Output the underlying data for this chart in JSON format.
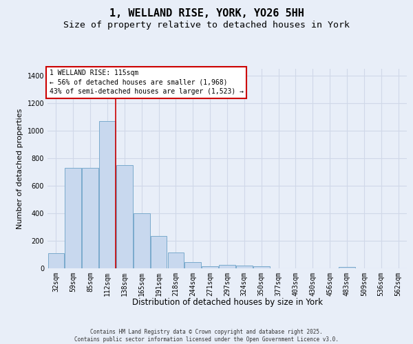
{
  "title1": "1, WELLAND RISE, YORK, YO26 5HH",
  "title2": "Size of property relative to detached houses in York",
  "xlabel": "Distribution of detached houses by size in York",
  "ylabel": "Number of detached properties",
  "bar_color": "#c8d8ee",
  "bar_edge_color": "#7aaacc",
  "background_color": "#e8eef8",
  "grid_color": "#d0d8e8",
  "categories": [
    "32sqm",
    "59sqm",
    "85sqm",
    "112sqm",
    "138sqm",
    "165sqm",
    "191sqm",
    "218sqm",
    "244sqm",
    "271sqm",
    "297sqm",
    "324sqm",
    "350sqm",
    "377sqm",
    "403sqm",
    "430sqm",
    "456sqm",
    "483sqm",
    "509sqm",
    "536sqm",
    "562sqm"
  ],
  "values": [
    110,
    730,
    730,
    1070,
    750,
    400,
    235,
    115,
    45,
    15,
    25,
    20,
    15,
    0,
    0,
    0,
    0,
    10,
    0,
    0,
    0
  ],
  "ylim": [
    0,
    1450
  ],
  "annot_label": "1 WELLAND RISE: 115sqm",
  "annot_line1": "← 56% of detached houses are smaller (1,968)",
  "annot_line2": "43% of semi-detached houses are larger (1,523) →",
  "annot_box_facecolor": "#ffffff",
  "annot_box_edgecolor": "#cc0000",
  "vline_color": "#cc0000",
  "vline_x": 3.5,
  "footer1": "Contains HM Land Registry data © Crown copyright and database right 2025.",
  "footer2": "Contains public sector information licensed under the Open Government Licence v3.0.",
  "title1_fontsize": 11,
  "title2_fontsize": 9.5,
  "ylabel_fontsize": 8,
  "xlabel_fontsize": 8.5,
  "tick_fontsize": 7,
  "footer_fontsize": 5.5
}
